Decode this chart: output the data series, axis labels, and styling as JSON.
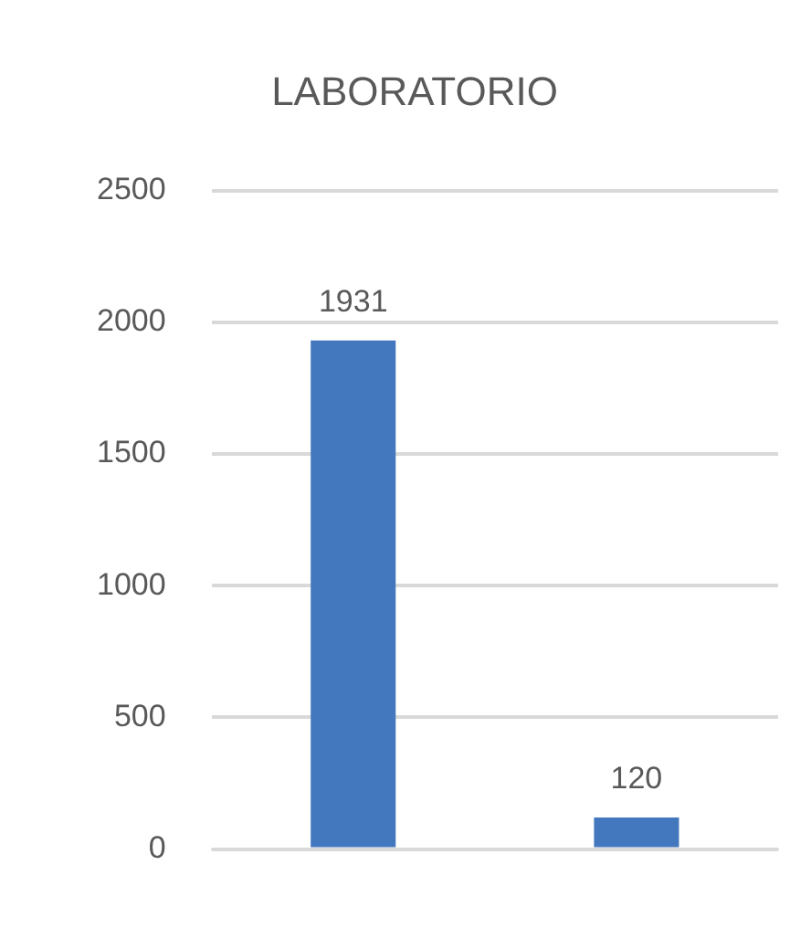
{
  "chart_data": {
    "type": "bar",
    "title": "LABORATORIO",
    "categories": [
      null,
      null
    ],
    "values": [
      1931,
      120
    ],
    "color": "#4478be",
    "ylim": [
      0,
      2500
    ],
    "yticks": [
      0,
      500,
      1000,
      1500,
      2000,
      2500
    ],
    "grid": "y",
    "data_labels": true
  }
}
